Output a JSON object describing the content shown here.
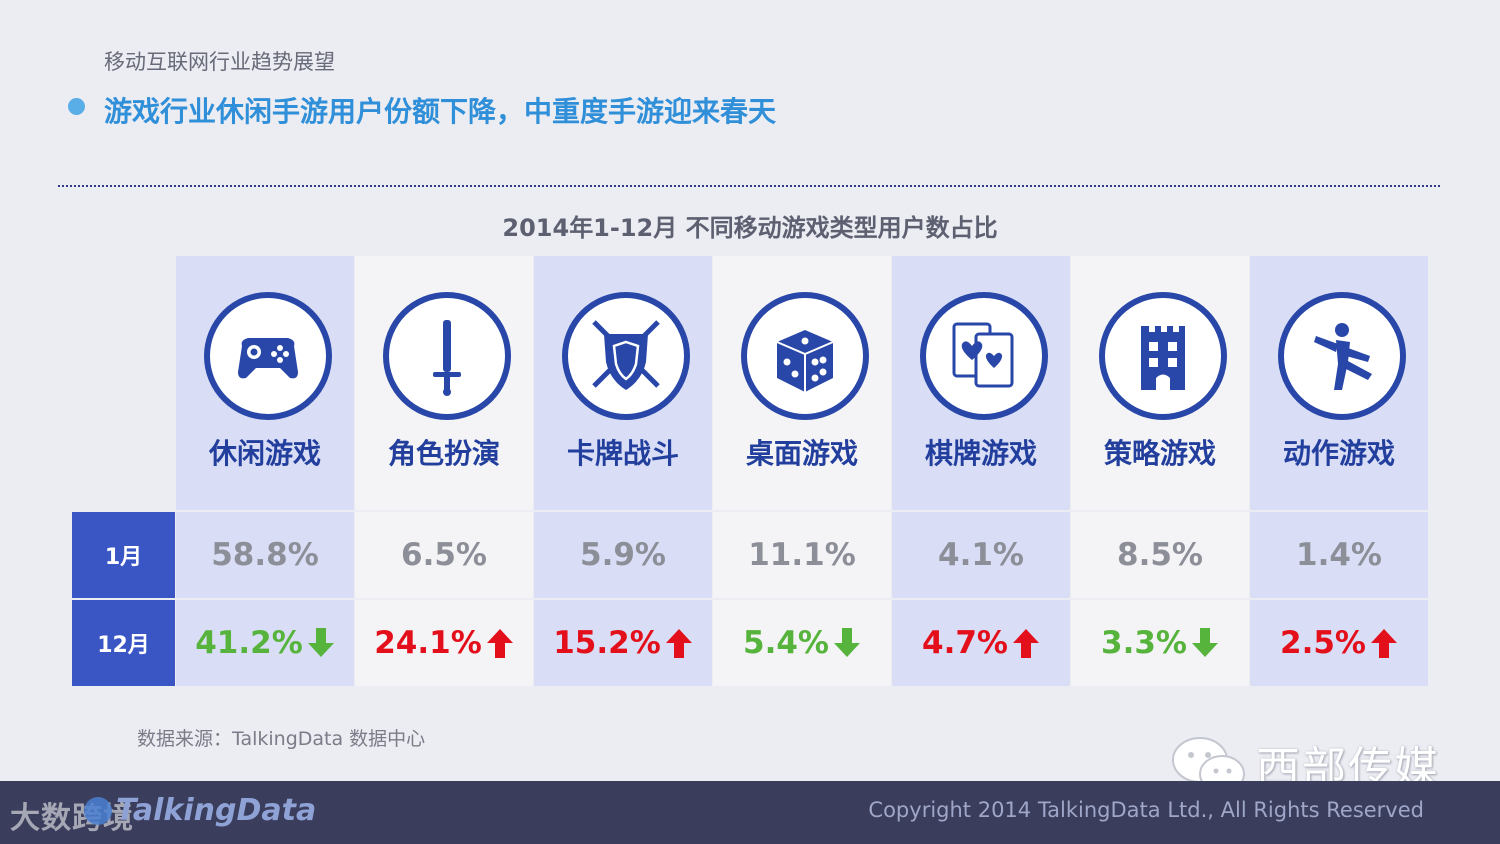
{
  "header": {
    "section_title": "移动互联网行业趋势展望",
    "headline": "游戏行业休闲手游用户份额下降，中重度手游迎来春天"
  },
  "chart_data": {
    "type": "table",
    "title": "2014年1-12月 不同移动游戏类型用户数占比",
    "categories": [
      "休闲游戏",
      "角色扮演",
      "卡牌战斗",
      "桌面游戏",
      "棋牌游戏",
      "策略游戏",
      "动作游戏"
    ],
    "icons": [
      "gamepad-icon",
      "sword-icon",
      "shield-icon",
      "dice-icon",
      "cards-icon",
      "castle-icon",
      "running-person-icon"
    ],
    "rows": [
      {
        "label": "1月",
        "values": [
          "58.8%",
          "6.5%",
          "5.9%",
          "11.1%",
          "4.1%",
          "8.5%",
          "1.4%"
        ]
      },
      {
        "label": "12月",
        "values": [
          "41.2%",
          "24.1%",
          "15.2%",
          "5.4%",
          "4.7%",
          "3.3%",
          "2.5%"
        ],
        "trend": [
          "down",
          "up",
          "up",
          "down",
          "up",
          "down",
          "up"
        ]
      }
    ],
    "colors": {
      "up": "#e3101b",
      "down": "#56b33c",
      "jan": "#8c8e98",
      "accent": "#3a56c5"
    }
  },
  "source": "数据来源：TalkingData 数据中心",
  "watermark": {
    "wechat_account": "西部传媒",
    "corner_text": "大数跨境"
  },
  "footer": {
    "logo_text": "TalkingData",
    "copyright": "Copyright 2014 TalkingData Ltd., All Rights Reserved"
  }
}
